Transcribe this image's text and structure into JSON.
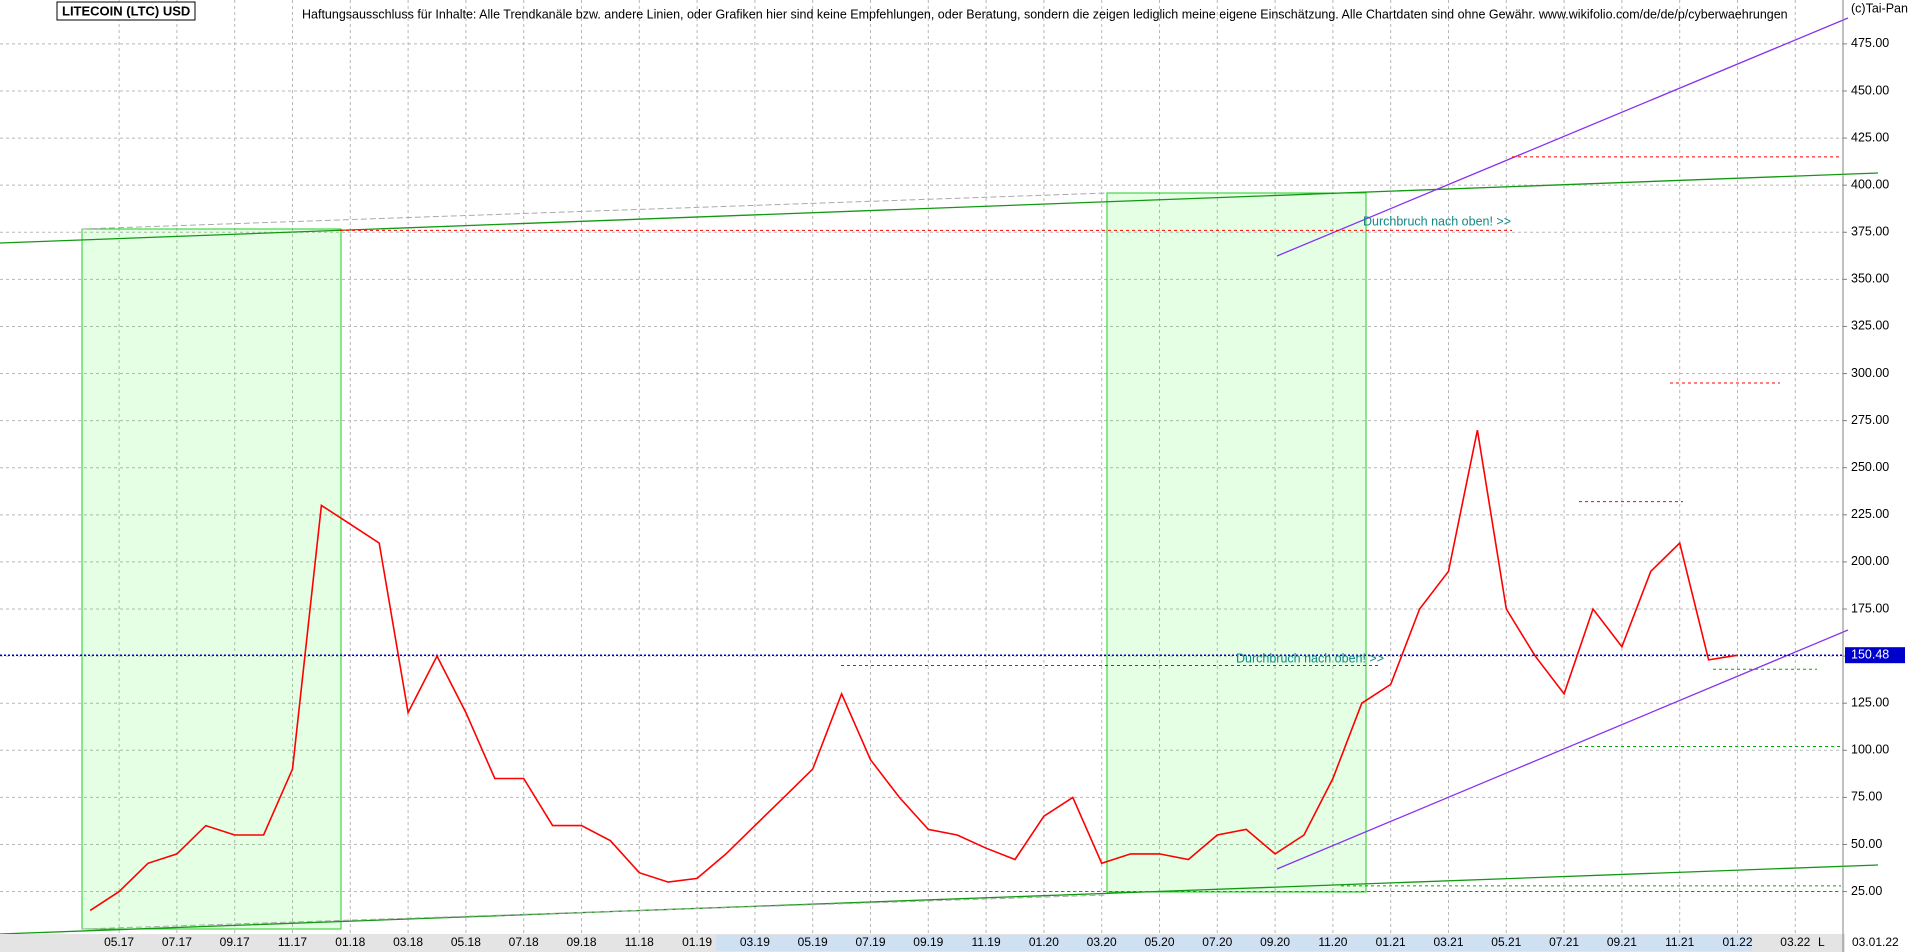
{
  "chart_data": {
    "type": "line",
    "title": "LITECOIN (LTC) USD",
    "subtitle": "Haftungsausschluss für Inhalte: Alle Trendkanäle bzw. andere Linien, oder Grafiken hier sind keine Empfehlungen, oder Beratung, sondern die zeigen lediglich meine eigene Einschätzung. Alle Chartdaten sind ohne Gewähr.  www.wikifolio.com/de/de/p/cyberwaehrungen",
    "copyright": "(c)Tai-Pan",
    "date_label": "03.01.22",
    "scale_label": "L",
    "annotations": [
      "Durchbruch nach oben! >>",
      "Durchbruch nach oben! >>"
    ],
    "categories": [
      null,
      "05.17",
      null,
      "07.17",
      null,
      "09.17",
      null,
      "11.17",
      null,
      "01.18",
      null,
      "03.18",
      null,
      "05.18",
      null,
      "07.18",
      null,
      "09.18",
      null,
      "11.18",
      null,
      "01.19",
      null,
      "03.19",
      null,
      "05.19",
      null,
      "07.19",
      null,
      "09.19",
      null,
      "11.19",
      null,
      "01.20",
      null,
      "03.20",
      null,
      "05.20",
      null,
      "07.20",
      null,
      "09.20",
      null,
      "11.20",
      null,
      "01.21",
      null,
      "03.21",
      null,
      "05.21",
      null,
      "07.21",
      null,
      "09.21",
      null,
      "11.21",
      null,
      "01.22",
      null,
      "03.22"
    ],
    "series": [
      {
        "color": "#ff0000",
        "values": [
          15,
          25,
          40,
          45,
          60,
          55,
          55,
          90,
          230,
          220,
          210,
          120,
          150,
          120,
          85,
          85,
          60,
          60,
          52,
          35,
          30,
          32,
          45,
          60,
          75,
          90,
          130,
          95,
          75,
          58,
          55,
          48,
          42,
          65,
          75,
          40,
          45,
          45,
          42,
          55,
          58,
          45,
          55,
          85,
          125,
          135,
          175,
          195,
          270,
          175,
          150,
          130,
          175,
          155,
          195,
          210,
          148,
          150.48,
          null,
          null
        ]
      }
    ],
    "ylim": [
      3,
      498.3
    ],
    "yticks": [
      {
        "value": 25,
        "label": "25.00"
      },
      {
        "value": 50,
        "label": "50.00"
      },
      {
        "value": 75,
        "label": "75.00"
      },
      {
        "value": 100,
        "label": "100.00"
      },
      {
        "value": 125,
        "label": "125.00"
      },
      {
        "value": 150,
        "label": "150.00"
      },
      {
        "value": 175,
        "label": "175.00"
      },
      {
        "value": 200,
        "label": "200.00"
      },
      {
        "value": 225,
        "label": "225.00"
      },
      {
        "value": 250,
        "label": "250.00"
      },
      {
        "value": 275,
        "label": "275.00"
      },
      {
        "value": 300,
        "label": "300.00"
      },
      {
        "value": 325,
        "label": "325.00"
      },
      {
        "value": 350,
        "label": "350.00"
      },
      {
        "value": 375,
        "label": "375.00"
      },
      {
        "value": 400,
        "label": "400.00"
      },
      {
        "value": 425,
        "label": "425.00"
      },
      {
        "value": 450,
        "label": "450.00"
      },
      {
        "value": 475,
        "label": "475.00"
      }
    ],
    "grid": true,
    "current": {
      "value": 150.48,
      "label": "150.48",
      "color": "#0000cc"
    },
    "levels": [
      {
        "value": 376,
        "color": "#ff0000"
      },
      {
        "value": 415,
        "color": "#ff0000"
      },
      {
        "value": 295,
        "color": "#ff0000"
      },
      {
        "value": 232,
        "color": "#ff0000"
      },
      {
        "value": 145,
        "color": "#ff0000"
      },
      {
        "value": 143,
        "color": "#00aa00"
      },
      {
        "value": 102,
        "color": "#00aa00"
      },
      {
        "value": 25,
        "color": "#00aa00"
      },
      {
        "value": 28,
        "color": "#00aa00"
      }
    ]
  }
}
